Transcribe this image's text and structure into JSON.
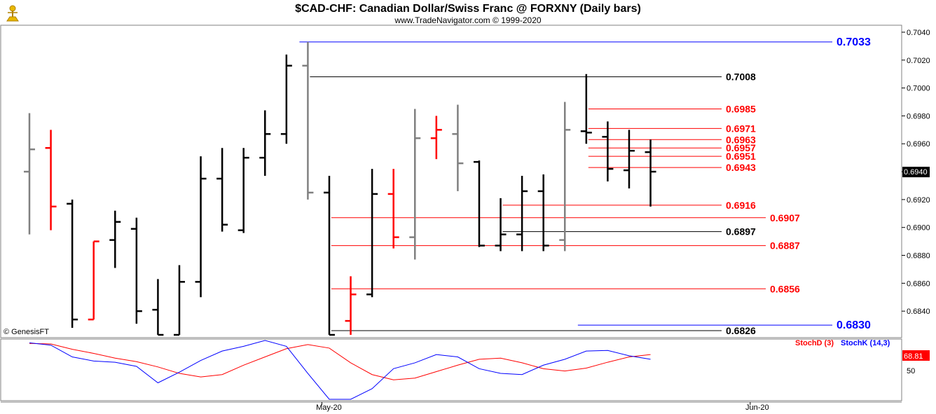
{
  "header": {
    "title": "$CAD-CHF:  Canadian Dollar/Swiss Franc @ FORXNY  (Daily bars)",
    "subtitle": "www.TradeNavigator.com © 1999-2020"
  },
  "watermark": "© GenesisFT",
  "colors": {
    "up_bar": "#000000",
    "down_bar": "#ff0000",
    "flat_bar": "#808080",
    "red_level": "#ff0000",
    "blue_level": "#0000ff",
    "black_level": "#000000",
    "stoch_d": "#ff0000",
    "stoch_k": "#0000ff"
  },
  "chart_data": {
    "type": "ohlc",
    "title": "$CAD-CHF:  Canadian Dollar/Swiss Franc @ FORXNY  (Daily bars)",
    "ylim": [
      0.6822,
      0.7044
    ],
    "y_ticks": [
      "0.7040",
      "0.7020",
      "0.7000",
      "0.6980",
      "0.6960",
      "0.6940",
      "0.6920",
      "0.6900",
      "0.6880",
      "0.6860",
      "0.6840"
    ],
    "last_price": "0.6940",
    "x_labels": [
      {
        "label": "May-20",
        "bar_index": 13
      },
      {
        "label": "Jun-20",
        "bar_index": 33
      }
    ],
    "bars": [
      {
        "o": 0.694,
        "h": 0.6982,
        "l": 0.6895,
        "c": 0.6956,
        "color": "gray"
      },
      {
        "o": 0.6957,
        "h": 0.697,
        "l": 0.6898,
        "c": 0.6915,
        "color": "red"
      },
      {
        "o": 0.6917,
        "h": 0.692,
        "l": 0.6828,
        "c": 0.6834,
        "color": "black"
      },
      {
        "o": 0.6834,
        "h": 0.689,
        "l": 0.6834,
        "c": 0.689,
        "color": "red"
      },
      {
        "o": 0.6891,
        "h": 0.6912,
        "l": 0.6871,
        "c": 0.6904,
        "color": "black"
      },
      {
        "o": 0.6899,
        "h": 0.6907,
        "l": 0.6831,
        "c": 0.684,
        "color": "black"
      },
      {
        "o": 0.6841,
        "h": 0.6863,
        "l": 0.6823,
        "c": 0.6823,
        "color": "black"
      },
      {
        "o": 0.6823,
        "h": 0.6873,
        "l": 0.6823,
        "c": 0.6861,
        "color": "black"
      },
      {
        "o": 0.6861,
        "h": 0.6951,
        "l": 0.685,
        "c": 0.6935,
        "color": "black"
      },
      {
        "o": 0.6935,
        "h": 0.6957,
        "l": 0.6897,
        "c": 0.6902,
        "color": "black"
      },
      {
        "o": 0.6898,
        "h": 0.6957,
        "l": 0.6896,
        "c": 0.695,
        "color": "black"
      },
      {
        "o": 0.695,
        "h": 0.6984,
        "l": 0.6937,
        "c": 0.6967,
        "color": "black"
      },
      {
        "o": 0.6967,
        "h": 0.7024,
        "l": 0.696,
        "c": 0.7016,
        "color": "black"
      },
      {
        "o": 0.7016,
        "h": 0.7033,
        "l": 0.692,
        "c": 0.6925,
        "color": "gray"
      },
      {
        "o": 0.6925,
        "h": 0.6937,
        "l": 0.6823,
        "c": 0.6823,
        "color": "black"
      },
      {
        "o": 0.6833,
        "h": 0.6865,
        "l": 0.6823,
        "c": 0.6852,
        "color": "red"
      },
      {
        "o": 0.6852,
        "h": 0.6942,
        "l": 0.685,
        "c": 0.6924,
        "color": "black"
      },
      {
        "o": 0.6924,
        "h": 0.6942,
        "l": 0.6885,
        "c": 0.6893,
        "color": "red"
      },
      {
        "o": 0.6893,
        "h": 0.6985,
        "l": 0.6877,
        "c": 0.6964,
        "color": "gray"
      },
      {
        "o": 0.6964,
        "h": 0.698,
        "l": 0.6949,
        "c": 0.697,
        "color": "red"
      },
      {
        "o": 0.6967,
        "h": 0.6988,
        "l": 0.6926,
        "c": 0.6946,
        "color": "gray"
      },
      {
        "o": 0.6947,
        "h": 0.6948,
        "l": 0.6886,
        "c": 0.6887,
        "color": "black"
      },
      {
        "o": 0.6887,
        "h": 0.6921,
        "l": 0.6883,
        "c": 0.6895,
        "color": "black"
      },
      {
        "o": 0.6895,
        "h": 0.6937,
        "l": 0.6883,
        "c": 0.6926,
        "color": "black"
      },
      {
        "o": 0.6926,
        "h": 0.6938,
        "l": 0.6883,
        "c": 0.6887,
        "color": "black"
      },
      {
        "o": 0.6891,
        "h": 0.699,
        "l": 0.6883,
        "c": 0.697,
        "color": "gray"
      },
      {
        "o": 0.6969,
        "h": 0.701,
        "l": 0.696,
        "c": 0.6968,
        "color": "black"
      },
      {
        "o": 0.6965,
        "h": 0.6976,
        "l": 0.6933,
        "c": 0.6942,
        "color": "black"
      },
      {
        "o": 0.6941,
        "h": 0.697,
        "l": 0.6928,
        "c": 0.6955,
        "color": "black"
      },
      {
        "o": 0.6954,
        "h": 0.6963,
        "l": 0.6915,
        "c": 0.694,
        "color": "black"
      }
    ],
    "levels": [
      {
        "label": "0.7033",
        "value": 0.7033,
        "color": "blue",
        "from_bar": 13,
        "size": "big"
      },
      {
        "label": "0.7008",
        "value": 0.7008,
        "color": "black",
        "from_bar": 13,
        "size": "normal"
      },
      {
        "label": "0.6985",
        "value": 0.6985,
        "color": "red",
        "from_bar": 26,
        "size": "normal"
      },
      {
        "label": "0.6971",
        "value": 0.6971,
        "color": "red",
        "from_bar": 26,
        "size": "normal"
      },
      {
        "label": "0.6963",
        "value": 0.6963,
        "color": "red",
        "from_bar": 26,
        "size": "normal"
      },
      {
        "label": "0.6957",
        "value": 0.6957,
        "color": "red",
        "from_bar": 26,
        "size": "normal"
      },
      {
        "label": "0.6951",
        "value": 0.6951,
        "color": "red",
        "from_bar": 26,
        "size": "normal"
      },
      {
        "label": "0.6943",
        "value": 0.6943,
        "color": "red",
        "from_bar": 26,
        "size": "normal"
      },
      {
        "label": "0.6916",
        "value": 0.6916,
        "color": "red",
        "from_bar": 22,
        "size": "normal"
      },
      {
        "label": "0.6907",
        "value": 0.6907,
        "color": "red",
        "from_bar": 14,
        "size": "normal"
      },
      {
        "label": "0.6897",
        "value": 0.6897,
        "color": "black",
        "from_bar": 22,
        "size": "normal"
      },
      {
        "label": "0.6887",
        "value": 0.6887,
        "color": "red",
        "from_bar": 14,
        "size": "normal"
      },
      {
        "label": "0.6856",
        "value": 0.6856,
        "color": "red",
        "from_bar": 14,
        "size": "normal"
      },
      {
        "label": "0.6830",
        "value": 0.683,
        "color": "blue",
        "from_bar": 26,
        "size": "big"
      },
      {
        "label": "0.6826",
        "value": 0.6826,
        "color": "black",
        "from_bar": 14,
        "size": "normal"
      }
    ],
    "stochastic": {
      "ylim": [
        0,
        100
      ],
      "tick_label": "50",
      "last_value": "68.81",
      "series": [
        {
          "name": "StochD (3)",
          "color": "red",
          "values": [
            95,
            94,
            85,
            78,
            70,
            64,
            55,
            44,
            38,
            42,
            58,
            72,
            86,
            93,
            87,
            62,
            42,
            33,
            36,
            47,
            58,
            68,
            70,
            62,
            52,
            48,
            53,
            63,
            72,
            76
          ]
        },
        {
          "name": "StochK (14,3)",
          "color": "blue",
          "values": [
            96,
            92,
            72,
            65,
            63,
            56,
            28,
            46,
            66,
            82,
            90,
            100,
            90,
            44,
            0,
            0,
            18,
            52,
            62,
            76,
            72,
            52,
            44,
            42,
            58,
            68,
            82,
            83,
            74,
            68
          ]
        }
      ]
    }
  }
}
